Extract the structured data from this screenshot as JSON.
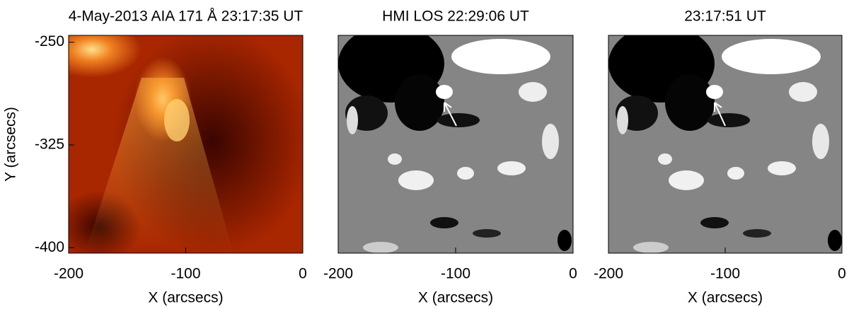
{
  "chart_data": [
    {
      "type": "image",
      "title": "4-May-2013 AIA 171 Å 23:17:35 UT",
      "xlabel": "X (arcsecs)",
      "ylabel": "Y (arcsecs)",
      "xlim": [
        -200,
        0
      ],
      "xticks": [
        -200,
        -100,
        0
      ],
      "ylim": [
        -404,
        -245
      ],
      "yticks": [
        -250,
        -325,
        -400
      ]
    },
    {
      "type": "image",
      "title": "HMI LOS 22:29:06 UT",
      "xlabel": "X (arcsecs)",
      "xlim": [
        -200,
        0
      ],
      "xticks": [
        -200,
        -100,
        0
      ]
    },
    {
      "type": "image",
      "title": "23:17:51 UT",
      "xlabel": "X (arcsecs)",
      "xlim": [
        -200,
        0
      ],
      "xticks": [
        -200,
        -100,
        0
      ]
    }
  ]
}
